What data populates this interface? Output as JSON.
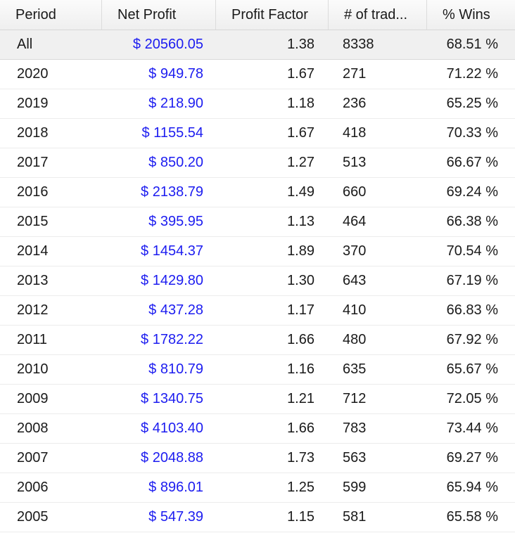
{
  "columns": {
    "period": "Period",
    "net_profit": "Net Profit",
    "profit_factor": "Profit Factor",
    "trades": "# of trad...",
    "wins": "% Wins"
  },
  "summary": {
    "period": "All",
    "net_profit": "$ 20560.05",
    "profit_factor": "1.38",
    "trades": "8338",
    "wins": "68.51 %"
  },
  "rows": [
    {
      "period": "2020",
      "net_profit": "$ 949.78",
      "profit_factor": "1.67",
      "trades": "271",
      "wins": "71.22 %"
    },
    {
      "period": "2019",
      "net_profit": "$ 218.90",
      "profit_factor": "1.18",
      "trades": "236",
      "wins": "65.25 %"
    },
    {
      "period": "2018",
      "net_profit": "$ 1155.54",
      "profit_factor": "1.67",
      "trades": "418",
      "wins": "70.33 %"
    },
    {
      "period": "2017",
      "net_profit": "$ 850.20",
      "profit_factor": "1.27",
      "trades": "513",
      "wins": "66.67 %"
    },
    {
      "period": "2016",
      "net_profit": "$ 2138.79",
      "profit_factor": "1.49",
      "trades": "660",
      "wins": "69.24 %"
    },
    {
      "period": "2015",
      "net_profit": "$ 395.95",
      "profit_factor": "1.13",
      "trades": "464",
      "wins": "66.38 %"
    },
    {
      "period": "2014",
      "net_profit": "$ 1454.37",
      "profit_factor": "1.89",
      "trades": "370",
      "wins": "70.54 %"
    },
    {
      "period": "2013",
      "net_profit": "$ 1429.80",
      "profit_factor": "1.30",
      "trades": "643",
      "wins": "67.19 %"
    },
    {
      "period": "2012",
      "net_profit": "$ 437.28",
      "profit_factor": "1.17",
      "trades": "410",
      "wins": "66.83 %"
    },
    {
      "period": "2011",
      "net_profit": "$ 1782.22",
      "profit_factor": "1.66",
      "trades": "480",
      "wins": "67.92 %"
    },
    {
      "period": "2010",
      "net_profit": "$ 810.79",
      "profit_factor": "1.16",
      "trades": "635",
      "wins": "65.67 %"
    },
    {
      "period": "2009",
      "net_profit": "$ 1340.75",
      "profit_factor": "1.21",
      "trades": "712",
      "wins": "72.05 %"
    },
    {
      "period": "2008",
      "net_profit": "$ 4103.40",
      "profit_factor": "1.66",
      "trades": "783",
      "wins": "73.44 %"
    },
    {
      "period": "2007",
      "net_profit": "$ 2048.88",
      "profit_factor": "1.73",
      "trades": "563",
      "wins": "69.27 %"
    },
    {
      "period": "2006",
      "net_profit": "$ 896.01",
      "profit_factor": "1.25",
      "trades": "599",
      "wins": "65.94 %"
    },
    {
      "period": "2005",
      "net_profit": "$ 547.39",
      "profit_factor": "1.15",
      "trades": "581",
      "wins": "65.58 %"
    }
  ],
  "colors": {
    "profit_text": "#1c1cf0",
    "summary_bg": "#f0f0f0"
  }
}
